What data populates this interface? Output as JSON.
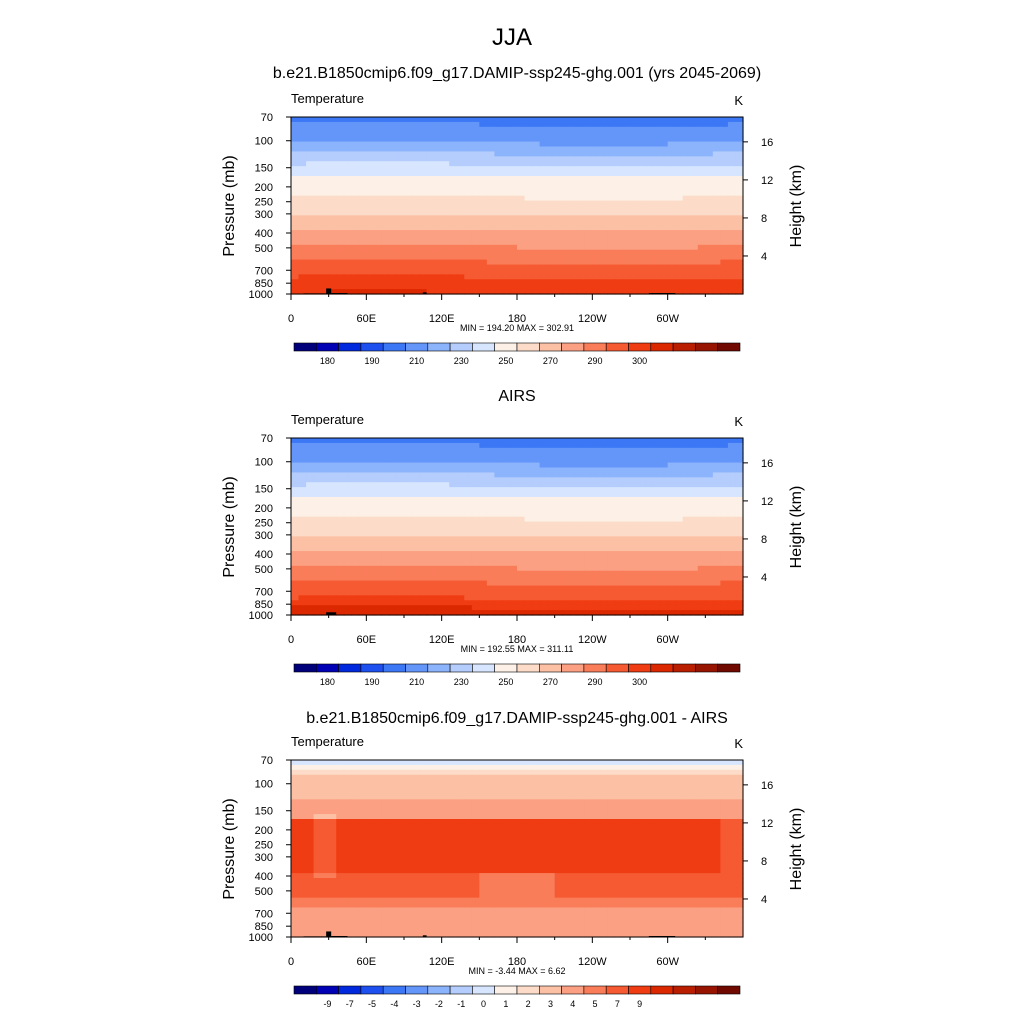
{
  "season": "JJA",
  "colors": {
    "temp_scale": [
      "#00007a",
      "#0000b4",
      "#0028dc",
      "#1e50f0",
      "#3c78f5",
      "#6496fa",
      "#8cb4fc",
      "#b4cdfd",
      "#d7e6fe",
      "#fdf0e6",
      "#fcdcc8",
      "#fcc0a5",
      "#fba082",
      "#fa7d5a",
      "#f55a32",
      "#f03c12",
      "#dc2800",
      "#b91e00",
      "#961400",
      "#700a00"
    ],
    "diff_scale": [
      "#00007a",
      "#0000b4",
      "#0028dc",
      "#1e50f0",
      "#3c78f5",
      "#6496fa",
      "#8cb4fc",
      "#b4cdfd",
      "#d7e6fe",
      "#fdf0e6",
      "#fcdcc8",
      "#fcc0a5",
      "#fba082",
      "#fa7d5a",
      "#f55a32",
      "#f03c12",
      "#dc2800",
      "#b91e00",
      "#961400",
      "#700a00"
    ]
  },
  "chart_data": [
    {
      "type": "heatmap",
      "title": "b.e21.B1850cmip6.f09_g17.DAMIP-ssp245-ghg.001 (yrs 2045-2069)",
      "left_label": "Temperature",
      "right_label": "K",
      "ylabel": "Pressure (mb)",
      "y2label": "Height (km)",
      "x_ticks": [
        "0",
        "60E",
        "120E",
        "180",
        "120W",
        "60W"
      ],
      "x_tick_lons": [
        0,
        60,
        120,
        180,
        240,
        300
      ],
      "xlim": [
        0,
        360
      ],
      "p_ticks": [
        "70",
        "100",
        "150",
        "200",
        "250",
        "300",
        "400",
        "500",
        "700",
        "850",
        "1000"
      ],
      "p_values": [
        70,
        100,
        150,
        200,
        250,
        300,
        400,
        500,
        700,
        850,
        1000
      ],
      "ylim": [
        1000,
        70
      ],
      "height_ticks": [
        "4",
        "8",
        "12",
        "16"
      ],
      "height_values": [
        4,
        8,
        12,
        16
      ],
      "stats": "MIN = 194.20  MAX = 302.91",
      "min": 194.2,
      "max": 302.91,
      "colorbar_labels": [
        "180",
        "190",
        "210",
        "230",
        "250",
        "270",
        "290",
        "300"
      ],
      "colorbar_label_bins": [
        1,
        3,
        5,
        7,
        9,
        11,
        13,
        15
      ],
      "palette": "temp_scale",
      "bin_edges": [
        175,
        180,
        185,
        190,
        195,
        200,
        205,
        210,
        215,
        220,
        230,
        240,
        250,
        260,
        270,
        280,
        290,
        295,
        300,
        305
      ],
      "mode": "temp",
      "topography": true
    },
    {
      "type": "heatmap",
      "title": "AIRS",
      "left_label": "Temperature",
      "right_label": "K",
      "ylabel": "Pressure (mb)",
      "y2label": "Height (km)",
      "x_ticks": [
        "0",
        "60E",
        "120E",
        "180",
        "120W",
        "60W"
      ],
      "x_tick_lons": [
        0,
        60,
        120,
        180,
        240,
        300
      ],
      "xlim": [
        0,
        360
      ],
      "p_ticks": [
        "70",
        "100",
        "150",
        "200",
        "250",
        "300",
        "400",
        "500",
        "700",
        "850",
        "1000"
      ],
      "p_values": [
        70,
        100,
        150,
        200,
        250,
        300,
        400,
        500,
        700,
        850,
        1000
      ],
      "ylim": [
        1000,
        70
      ],
      "height_ticks": [
        "4",
        "8",
        "12",
        "16"
      ],
      "height_values": [
        4,
        8,
        12,
        16
      ],
      "stats": "MIN = 192.55  MAX = 311.11",
      "min": 192.55,
      "max": 311.11,
      "colorbar_labels": [
        "180",
        "190",
        "210",
        "230",
        "250",
        "270",
        "290",
        "300"
      ],
      "colorbar_label_bins": [
        1,
        3,
        5,
        7,
        9,
        11,
        13,
        15
      ],
      "palette": "temp_scale",
      "bin_edges": [
        175,
        180,
        185,
        190,
        195,
        200,
        205,
        210,
        215,
        220,
        230,
        240,
        250,
        260,
        270,
        280,
        290,
        295,
        300,
        305
      ],
      "mode": "temp_obs",
      "topography": false
    },
    {
      "type": "heatmap",
      "title": "b.e21.B1850cmip6.f09_g17.DAMIP-ssp245-ghg.001 - AIRS",
      "left_label": "Temperature",
      "right_label": "K",
      "ylabel": "Pressure (mb)",
      "y2label": "Height (km)",
      "x_ticks": [
        "0",
        "60E",
        "120E",
        "180",
        "120W",
        "60W"
      ],
      "x_tick_lons": [
        0,
        60,
        120,
        180,
        240,
        300
      ],
      "xlim": [
        0,
        360
      ],
      "p_ticks": [
        "70",
        "100",
        "150",
        "200",
        "250",
        "300",
        "400",
        "500",
        "700",
        "850",
        "1000"
      ],
      "p_values": [
        70,
        100,
        150,
        200,
        250,
        300,
        400,
        500,
        700,
        850,
        1000
      ],
      "ylim": [
        1000,
        70
      ],
      "height_ticks": [
        "4",
        "8",
        "12",
        "16"
      ],
      "height_values": [
        4,
        8,
        12,
        16
      ],
      "stats": "MIN =  -3.44  MAX =   6.62",
      "min": -3.44,
      "max": 6.62,
      "colorbar_labels": [
        "-9",
        "-7",
        "-5",
        "-4",
        "-3",
        "-2",
        "-1",
        "0",
        "1",
        "2",
        "3",
        "4",
        "5",
        "7",
        "9"
      ],
      "colorbar_label_bins": [
        1,
        2,
        3,
        4,
        5,
        6,
        7,
        8,
        9,
        10,
        11,
        12,
        13,
        14,
        15
      ],
      "palette": "diff_scale",
      "bin_edges": [
        -11,
        -9,
        -8,
        -7,
        -6,
        -5,
        -4,
        -3,
        -2,
        -1,
        0,
        1,
        2,
        3,
        4,
        5,
        6,
        7,
        8,
        9
      ],
      "mode": "diff",
      "topography": true
    }
  ]
}
